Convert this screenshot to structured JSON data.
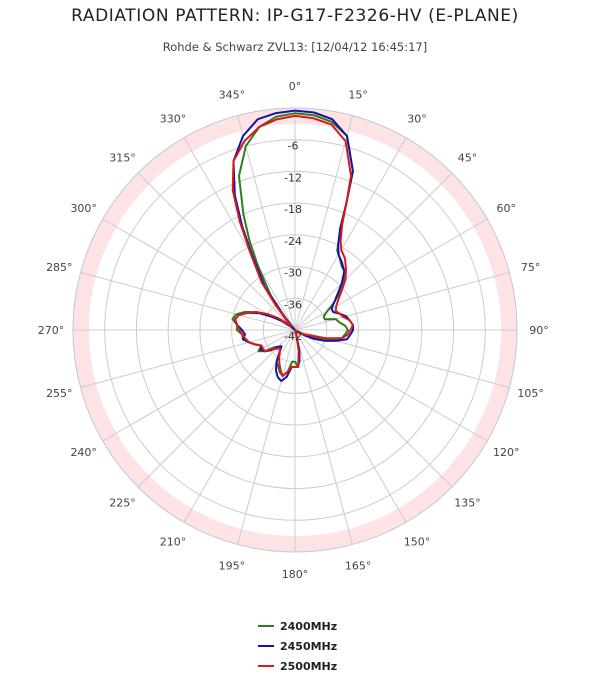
{
  "chart_data": {
    "type": "polar-line",
    "title": "RADIATION PATTERN: IP-G17-F2326-HV (E-PLANE)",
    "subtitle": "Rohde & Schwarz ZVL13: [12/04/12 16:45:17]",
    "angle_ticks": [
      "0°",
      "15°",
      "30°",
      "45°",
      "60°",
      "75°",
      "90°",
      "105°",
      "120°",
      "135°",
      "150°",
      "165°",
      "180°",
      "195°",
      "210°",
      "225°",
      "240°",
      "255°",
      "270°",
      "285°",
      "300°",
      "315°",
      "330°",
      "345°"
    ],
    "radial_ticks": [
      "-6",
      "-12",
      "-18",
      "-24",
      "-30",
      "-36",
      "-42"
    ],
    "radial_range": [
      -42,
      0
    ],
    "highlight_band": [
      -3,
      0
    ],
    "grid": true,
    "legend_position": "bottom",
    "series": [
      {
        "name": "2400MHz",
        "color": "#2e7d1f",
        "points": [
          [
            0,
            -1
          ],
          [
            5,
            -1.2
          ],
          [
            10,
            -2
          ],
          [
            15,
            -4
          ],
          [
            20,
            -10
          ],
          [
            22,
            -16
          ],
          [
            25,
            -22
          ],
          [
            28,
            -25
          ],
          [
            32,
            -26
          ],
          [
            36,
            -27
          ],
          [
            40,
            -27.5
          ],
          [
            45,
            -29
          ],
          [
            50,
            -31
          ],
          [
            55,
            -33
          ],
          [
            60,
            -35
          ],
          [
            65,
            -36
          ],
          [
            70,
            -36
          ],
          [
            75,
            -34
          ],
          [
            80,
            -33.5
          ],
          [
            85,
            -32.5
          ],
          [
            90,
            -32
          ],
          [
            95,
            -32.5
          ],
          [
            100,
            -33
          ],
          [
            105,
            -35
          ],
          [
            110,
            -37
          ],
          [
            115,
            -39
          ],
          [
            120,
            -41
          ],
          [
            128,
            -42
          ],
          [
            140,
            -42
          ],
          [
            160,
            -42
          ],
          [
            165,
            -41
          ],
          [
            170,
            -37
          ],
          [
            175,
            -35
          ],
          [
            180,
            -36
          ],
          [
            185,
            -36
          ],
          [
            190,
            -34
          ],
          [
            195,
            -33
          ],
          [
            200,
            -33.5
          ],
          [
            205,
            -34.5
          ],
          [
            210,
            -35
          ],
          [
            215,
            -37
          ],
          [
            220,
            -38
          ],
          [
            225,
            -37.5
          ],
          [
            230,
            -37
          ],
          [
            235,
            -35
          ],
          [
            240,
            -34
          ],
          [
            245,
            -35
          ],
          [
            250,
            -34
          ],
          [
            255,
            -33
          ],
          [
            260,
            -32
          ],
          [
            265,
            -32
          ],
          [
            270,
            -31
          ],
          [
            275,
            -31
          ],
          [
            280,
            -30
          ],
          [
            285,
            -30.5
          ],
          [
            290,
            -32
          ],
          [
            295,
            -34
          ],
          [
            300,
            -37
          ],
          [
            305,
            -39
          ],
          [
            310,
            -41
          ],
          [
            315,
            -42
          ],
          [
            318,
            -42
          ],
          [
            322,
            -39
          ],
          [
            325,
            -34
          ],
          [
            330,
            -28
          ],
          [
            333,
            -23
          ],
          [
            336,
            -18
          ],
          [
            340,
            -11
          ],
          [
            345,
            -6
          ],
          [
            350,
            -3
          ],
          [
            355,
            -1.5
          ]
        ]
      },
      {
        "name": "2450MHz",
        "color": "#1414a8",
        "points": [
          [
            0,
            -0.5
          ],
          [
            5,
            -0.7
          ],
          [
            10,
            -1.5
          ],
          [
            15,
            -4
          ],
          [
            20,
            -10
          ],
          [
            22,
            -16
          ],
          [
            24,
            -21
          ],
          [
            27,
            -24
          ],
          [
            30,
            -25.5
          ],
          [
            35,
            -26.5
          ],
          [
            40,
            -27.5
          ],
          [
            45,
            -29.5
          ],
          [
            50,
            -31.5
          ],
          [
            55,
            -33
          ],
          [
            60,
            -34
          ],
          [
            65,
            -34
          ],
          [
            70,
            -33
          ],
          [
            75,
            -32
          ],
          [
            80,
            -31.5
          ],
          [
            85,
            -31
          ],
          [
            90,
            -31
          ],
          [
            95,
            -31.5
          ],
          [
            100,
            -32
          ],
          [
            105,
            -34
          ],
          [
            110,
            -36
          ],
          [
            115,
            -38
          ],
          [
            120,
            -40
          ],
          [
            128,
            -42
          ],
          [
            140,
            -42
          ],
          [
            160,
            -42
          ],
          [
            165,
            -41
          ],
          [
            168,
            -38
          ],
          [
            172,
            -36
          ],
          [
            176,
            -35
          ],
          [
            180,
            -35
          ],
          [
            185,
            -35
          ],
          [
            190,
            -33
          ],
          [
            195,
            -32
          ],
          [
            200,
            -32.5
          ],
          [
            205,
            -33.5
          ],
          [
            210,
            -35
          ],
          [
            215,
            -37
          ],
          [
            220,
            -38
          ],
          [
            225,
            -37.5
          ],
          [
            230,
            -36
          ],
          [
            235,
            -35
          ],
          [
            240,
            -34.5
          ],
          [
            245,
            -35
          ],
          [
            250,
            -34
          ],
          [
            255,
            -33
          ],
          [
            260,
            -32
          ],
          [
            265,
            -32.5
          ],
          [
            270,
            -32
          ],
          [
            275,
            -31
          ],
          [
            280,
            -30.5
          ],
          [
            285,
            -31
          ],
          [
            290,
            -32.5
          ],
          [
            295,
            -34.5
          ],
          [
            300,
            -37
          ],
          [
            305,
            -39
          ],
          [
            310,
            -41
          ],
          [
            315,
            -42
          ],
          [
            318,
            -41
          ],
          [
            322,
            -38
          ],
          [
            325,
            -32
          ],
          [
            330,
            -26
          ],
          [
            333,
            -20
          ],
          [
            336,
            -14
          ],
          [
            340,
            -8
          ],
          [
            345,
            -4
          ],
          [
            350,
            -1.5
          ],
          [
            355,
            -0.8
          ]
        ]
      },
      {
        "name": "2500MHz",
        "color": "#d81a1a",
        "points": [
          [
            0,
            -1.5
          ],
          [
            5,
            -1.8
          ],
          [
            10,
            -2.5
          ],
          [
            15,
            -5
          ],
          [
            20,
            -11
          ],
          [
            22,
            -16
          ],
          [
            24,
            -20
          ],
          [
            27,
            -23
          ],
          [
            30,
            -24.5
          ],
          [
            35,
            -25.5
          ],
          [
            40,
            -27
          ],
          [
            45,
            -28.5
          ],
          [
            50,
            -30.5
          ],
          [
            55,
            -32
          ],
          [
            60,
            -33
          ],
          [
            65,
            -33.5
          ],
          [
            70,
            -33
          ],
          [
            75,
            -32.5
          ],
          [
            80,
            -31.5
          ],
          [
            85,
            -31
          ],
          [
            90,
            -31.5
          ],
          [
            95,
            -32
          ],
          [
            100,
            -33
          ],
          [
            105,
            -36
          ],
          [
            110,
            -39
          ],
          [
            115,
            -40
          ],
          [
            120,
            -40.5
          ],
          [
            125,
            -41
          ],
          [
            135,
            -42
          ],
          [
            160,
            -42
          ],
          [
            165,
            -41
          ],
          [
            170,
            -38
          ],
          [
            175,
            -35
          ],
          [
            180,
            -35
          ],
          [
            185,
            -35
          ],
          [
            190,
            -34
          ],
          [
            195,
            -33
          ],
          [
            200,
            -34
          ],
          [
            205,
            -35
          ],
          [
            210,
            -36
          ],
          [
            215,
            -37
          ],
          [
            220,
            -37.5
          ],
          [
            225,
            -37
          ],
          [
            230,
            -36.5
          ],
          [
            235,
            -35
          ],
          [
            240,
            -35
          ],
          [
            245,
            -35
          ],
          [
            250,
            -34
          ],
          [
            255,
            -33
          ],
          [
            260,
            -32.5
          ],
          [
            265,
            -32
          ],
          [
            270,
            -31.5
          ],
          [
            275,
            -31
          ],
          [
            280,
            -30.5
          ],
          [
            285,
            -31
          ],
          [
            290,
            -32.5
          ],
          [
            295,
            -34
          ],
          [
            300,
            -36
          ],
          [
            305,
            -38
          ],
          [
            310,
            -40
          ],
          [
            315,
            -41
          ],
          [
            318,
            -40
          ],
          [
            322,
            -36
          ],
          [
            325,
            -31
          ],
          [
            330,
            -25
          ],
          [
            333,
            -19
          ],
          [
            336,
            -13
          ],
          [
            340,
            -8
          ],
          [
            345,
            -5
          ],
          [
            350,
            -3
          ],
          [
            355,
            -2
          ]
        ]
      }
    ]
  }
}
